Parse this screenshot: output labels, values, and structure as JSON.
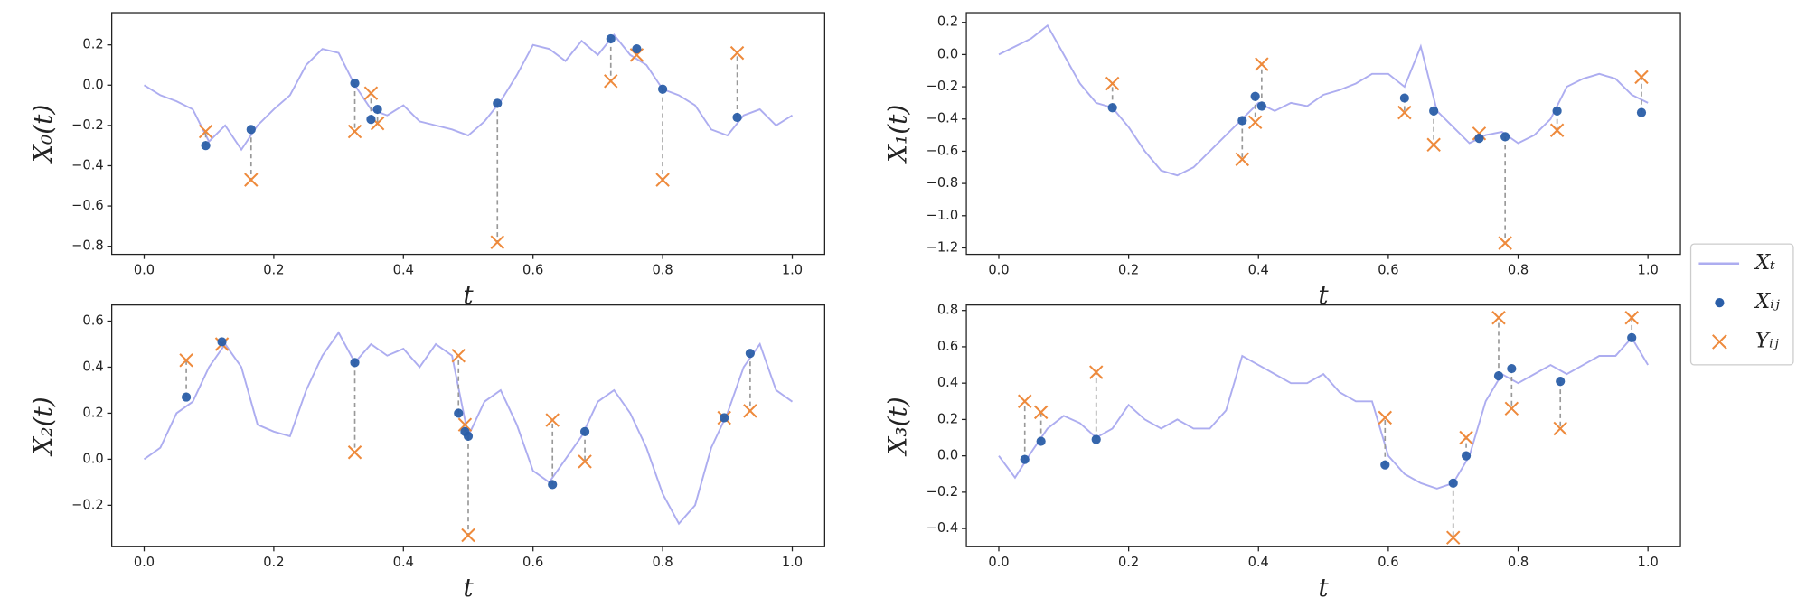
{
  "chart_data": [
    {
      "type": "line",
      "xlabel": "t",
      "ylabel": "X₀(t)",
      "xlim": [
        -0.05,
        1.05
      ],
      "xticks": [
        {
          "value": 0,
          "label": "0.0"
        },
        0.2,
        0.4,
        0.6,
        0.8,
        {
          "value": 1,
          "label": "1.0"
        }
      ],
      "ylim": [
        -0.84,
        0.36
      ],
      "yticks": [
        {
          "value": -0.8,
          "label": "−0.8"
        },
        {
          "value": -0.6,
          "label": "−0.6"
        },
        {
          "value": -0.4,
          "label": "−0.4"
        },
        {
          "value": -0.2,
          "label": "−0.2"
        },
        {
          "value": 0,
          "label": "0.0"
        },
        0.2
      ],
      "series": [
        {
          "name": "Xₜ",
          "color": "#adadf0",
          "x": [
            0,
            0.025,
            0.05,
            0.075,
            0.1,
            0.125,
            0.15,
            0.175,
            0.2,
            0.225,
            0.25,
            0.275,
            0.3,
            0.325,
            0.35,
            0.375,
            0.4,
            0.425,
            0.45,
            0.475,
            0.5,
            0.525,
            0.55,
            0.575,
            0.6,
            0.625,
            0.65,
            0.675,
            0.7,
            0.725,
            0.75,
            0.775,
            0.8,
            0.825,
            0.85,
            0.875,
            0.9,
            0.925,
            0.95,
            0.975,
            1
          ],
          "values": [
            0,
            -0.05,
            -0.08,
            -0.12,
            -0.28,
            -0.2,
            -0.32,
            -0.2,
            -0.12,
            -0.05,
            0.1,
            0.18,
            0.16,
            0,
            -0.12,
            -0.15,
            -0.1,
            -0.18,
            -0.2,
            -0.22,
            -0.25,
            -0.18,
            -0.08,
            0.05,
            0.2,
            0.18,
            0.12,
            0.22,
            0.15,
            0.25,
            0.15,
            0.1,
            -0.02,
            -0.05,
            -0.1,
            -0.22,
            -0.25,
            -0.15,
            -0.12,
            -0.2,
            -0.15
          ]
        },
        {
          "name": "Xᵢⱼ",
          "color": "#2a5ea8",
          "x": [
            0.095,
            0.165,
            0.325,
            0.35,
            0.36,
            0.545,
            0.72,
            0.76,
            0.8,
            0.915
          ],
          "values": [
            -0.3,
            -0.22,
            0.01,
            -0.17,
            -0.12,
            -0.09,
            0.23,
            0.18,
            -0.02,
            -0.16
          ]
        },
        {
          "name": "Yᵢⱼ",
          "color": "#ee8a3c",
          "x": [
            0.095,
            0.165,
            0.325,
            0.35,
            0.36,
            0.545,
            0.72,
            0.76,
            0.8,
            0.915
          ],
          "values": [
            -0.23,
            -0.47,
            -0.23,
            -0.04,
            -0.19,
            -0.78,
            0.02,
            0.15,
            -0.47,
            0.16
          ]
        }
      ]
    },
    {
      "type": "line",
      "xlabel": "t",
      "ylabel": "X₁(t)",
      "xlim": [
        -0.05,
        1.05
      ],
      "xticks": [
        {
          "value": 0,
          "label": "0.0"
        },
        0.2,
        0.4,
        0.6,
        0.8,
        {
          "value": 1,
          "label": "1.0"
        }
      ],
      "ylim": [
        -1.24,
        0.26
      ],
      "yticks": [
        {
          "value": -1.2,
          "label": "−1.2"
        },
        {
          "value": -1,
          "label": "−1.0"
        },
        {
          "value": -0.8,
          "label": "−0.8"
        },
        {
          "value": -0.6,
          "label": "−0.6"
        },
        {
          "value": -0.4,
          "label": "−0.4"
        },
        {
          "value": -0.2,
          "label": "−0.2"
        },
        {
          "value": 0,
          "label": "0.0"
        },
        0.2
      ],
      "series": [
        {
          "color": "#adadf0",
          "x": [
            0,
            0.025,
            0.05,
            0.075,
            0.1,
            0.125,
            0.15,
            0.175,
            0.2,
            0.225,
            0.25,
            0.275,
            0.3,
            0.325,
            0.35,
            0.375,
            0.4,
            0.425,
            0.45,
            0.475,
            0.5,
            0.525,
            0.55,
            0.575,
            0.6,
            0.625,
            0.65,
            0.675,
            0.7,
            0.725,
            0.75,
            0.775,
            0.8,
            0.825,
            0.85,
            0.875,
            0.9,
            0.925,
            0.95,
            0.975,
            1
          ],
          "values": [
            0,
            0.05,
            0.1,
            0.18,
            0,
            -0.18,
            -0.3,
            -0.33,
            -0.45,
            -0.6,
            -0.72,
            -0.75,
            -0.7,
            -0.6,
            -0.5,
            -0.4,
            -0.3,
            -0.35,
            -0.3,
            -0.32,
            -0.25,
            -0.22,
            -0.18,
            -0.12,
            -0.12,
            -0.2,
            0.05,
            -0.35,
            -0.45,
            -0.55,
            -0.5,
            -0.48,
            -0.55,
            -0.5,
            -0.4,
            -0.2,
            -0.15,
            -0.12,
            -0.15,
            -0.25,
            -0.3
          ]
        },
        {
          "color": "#2a5ea8",
          "x": [
            0.175,
            0.375,
            0.395,
            0.405,
            0.625,
            0.67,
            0.74,
            0.78,
            0.86,
            0.99
          ],
          "values": [
            -0.33,
            -0.41,
            -0.26,
            -0.32,
            -0.27,
            -0.35,
            -0.52,
            -0.51,
            -0.35,
            -0.36
          ]
        },
        {
          "color": "#ee8a3c",
          "x": [
            0.175,
            0.375,
            0.395,
            0.405,
            0.625,
            0.67,
            0.74,
            0.78,
            0.86,
            0.99
          ],
          "values": [
            -0.18,
            -0.65,
            -0.42,
            -0.06,
            -0.36,
            -0.56,
            -0.49,
            -1.17,
            -0.47,
            -0.14
          ]
        }
      ]
    },
    {
      "type": "line",
      "xlabel": "t",
      "ylabel": "X₂(t)",
      "xlim": [
        -0.05,
        1.05
      ],
      "xticks": [
        {
          "value": 0,
          "label": "0.0"
        },
        0.2,
        0.4,
        0.6,
        0.8,
        {
          "value": 1,
          "label": "1.0"
        }
      ],
      "ylim": [
        -0.38,
        0.67
      ],
      "yticks": [
        {
          "value": -0.2,
          "label": "−0.2"
        },
        {
          "value": 0,
          "label": "0.0"
        },
        0.2,
        0.4,
        0.6
      ],
      "series": [
        {
          "color": "#adadf0",
          "x": [
            0,
            0.025,
            0.05,
            0.075,
            0.1,
            0.125,
            0.15,
            0.175,
            0.2,
            0.225,
            0.25,
            0.275,
            0.3,
            0.325,
            0.35,
            0.375,
            0.4,
            0.425,
            0.45,
            0.475,
            0.5,
            0.525,
            0.55,
            0.575,
            0.6,
            0.625,
            0.65,
            0.675,
            0.7,
            0.725,
            0.75,
            0.775,
            0.8,
            0.825,
            0.85,
            0.875,
            0.9,
            0.925,
            0.95,
            0.975,
            1
          ],
          "values": [
            0,
            0.05,
            0.2,
            0.25,
            0.4,
            0.5,
            0.4,
            0.15,
            0.12,
            0.1,
            0.3,
            0.45,
            0.55,
            0.42,
            0.5,
            0.45,
            0.48,
            0.4,
            0.5,
            0.45,
            0.1,
            0.25,
            0.3,
            0.15,
            -0.05,
            -0.1,
            0,
            0.1,
            0.25,
            0.3,
            0.2,
            0.05,
            -0.15,
            -0.28,
            -0.2,
            0.05,
            0.2,
            0.4,
            0.5,
            0.3,
            0.25
          ]
        },
        {
          "color": "#2a5ea8",
          "x": [
            0.065,
            0.12,
            0.325,
            0.485,
            0.495,
            0.5,
            0.63,
            0.68,
            0.895,
            0.935
          ],
          "values": [
            0.27,
            0.51,
            0.42,
            0.2,
            0.12,
            0.1,
            -0.11,
            0.12,
            0.18,
            0.46
          ]
        },
        {
          "color": "#ee8a3c",
          "x": [
            0.065,
            0.12,
            0.325,
            0.485,
            0.495,
            0.5,
            0.63,
            0.68,
            0.895,
            0.935
          ],
          "values": [
            0.43,
            0.5,
            0.03,
            0.45,
            0.15,
            -0.33,
            0.17,
            -0.01,
            0.18,
            0.21
          ]
        }
      ]
    },
    {
      "type": "line",
      "xlabel": "t",
      "ylabel": "X₃(t)",
      "xlim": [
        -0.05,
        1.05
      ],
      "xticks": [
        {
          "value": 0,
          "label": "0.0"
        },
        0.2,
        0.4,
        0.6,
        0.8,
        {
          "value": 1,
          "label": "1.0"
        }
      ],
      "ylim": [
        -0.5,
        0.83
      ],
      "yticks": [
        {
          "value": -0.4,
          "label": "−0.4"
        },
        {
          "value": -0.2,
          "label": "−0.2"
        },
        {
          "value": 0,
          "label": "0.0"
        },
        0.2,
        0.4,
        0.6,
        0.8
      ],
      "series": [
        {
          "color": "#adadf0",
          "x": [
            0,
            0.025,
            0.05,
            0.075,
            0.1,
            0.125,
            0.15,
            0.175,
            0.2,
            0.225,
            0.25,
            0.275,
            0.3,
            0.325,
            0.35,
            0.375,
            0.4,
            0.425,
            0.45,
            0.475,
            0.5,
            0.525,
            0.55,
            0.575,
            0.6,
            0.625,
            0.65,
            0.675,
            0.7,
            0.725,
            0.75,
            0.775,
            0.8,
            0.825,
            0.85,
            0.875,
            0.9,
            0.925,
            0.95,
            0.975,
            1
          ],
          "values": [
            0,
            -0.12,
            0.02,
            0.15,
            0.22,
            0.18,
            0.1,
            0.15,
            0.28,
            0.2,
            0.15,
            0.2,
            0.15,
            0.15,
            0.25,
            0.55,
            0.5,
            0.45,
            0.4,
            0.4,
            0.45,
            0.35,
            0.3,
            0.3,
            0,
            -0.1,
            -0.15,
            -0.18,
            -0.15,
            0,
            0.3,
            0.45,
            0.4,
            0.45,
            0.5,
            0.45,
            0.5,
            0.55,
            0.55,
            0.65,
            0.5
          ]
        },
        {
          "color": "#2a5ea8",
          "x": [
            0.04,
            0.065,
            0.15,
            0.595,
            0.7,
            0.72,
            0.77,
            0.79,
            0.865,
            0.975
          ],
          "values": [
            -0.02,
            0.08,
            0.09,
            -0.05,
            -0.15,
            0,
            0.44,
            0.48,
            0.41,
            0.65
          ]
        },
        {
          "color": "#ee8a3c",
          "x": [
            0.04,
            0.065,
            0.15,
            0.595,
            0.7,
            0.72,
            0.77,
            0.79,
            0.865,
            0.975
          ],
          "values": [
            0.3,
            0.24,
            0.46,
            0.21,
            -0.45,
            0.1,
            0.76,
            0.26,
            0.15,
            0.76
          ]
        }
      ]
    }
  ]
}
